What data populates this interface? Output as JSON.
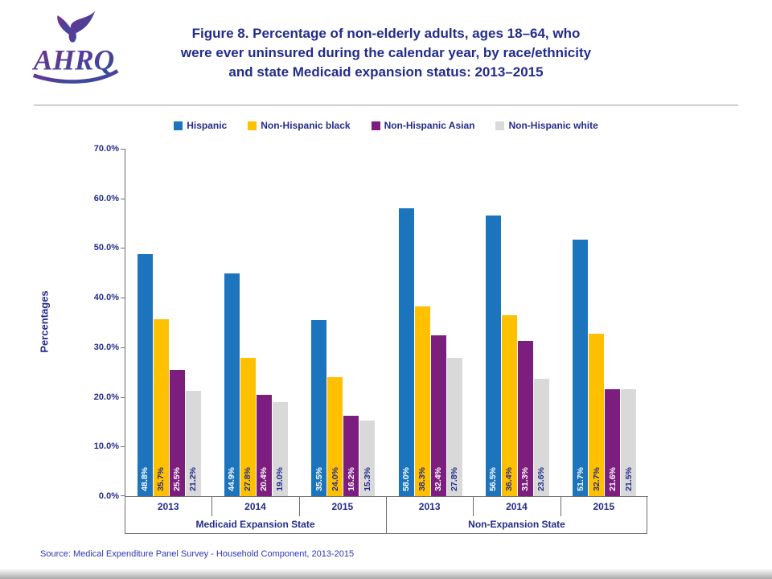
{
  "colors": {
    "navy": "#232C8B",
    "source_blue": "#2F35B5",
    "axis_gray": "#6E6E6E",
    "hispanic_blue": "#1C75BC",
    "black_gold": "#FFC000",
    "asian_purple": "#7C1E7E",
    "white_gray": "#D9D9D9"
  },
  "header": {
    "logo_name": "AHRQ",
    "title_lines": [
      "Figure 8. Percentage of non-elderly adults, ages 18–64, who",
      "were ever uninsured during the calendar year, by race/ethnicity",
      "and state Medicaid expansion status: 2013–2015"
    ]
  },
  "chart_data": {
    "type": "bar",
    "title": "Figure 8. Percentage of non-elderly adults, ages 18–64, who were ever uninsured during the calendar year, by race/ethnicity and state Medicaid expansion status: 2013–2015",
    "ylabel": "Percentages",
    "ylim": [
      0,
      70
    ],
    "ytick_step": 10,
    "ytick_format": "percent_one_decimal",
    "grid": false,
    "legend_position": "top",
    "categories": [
      "2013",
      "2014",
      "2015",
      "2013",
      "2014",
      "2015"
    ],
    "sections": [
      {
        "label": "Medicaid Expansion State",
        "span": 3
      },
      {
        "label": "Non-Expansion State",
        "span": 3
      }
    ],
    "series": [
      {
        "name": "Hispanic",
        "color": "#1C75BC",
        "label_color": "#FFFFFF",
        "values": [
          48.8,
          44.9,
          35.5,
          58.0,
          56.5,
          51.7
        ]
      },
      {
        "name": "Non-Hispanic black",
        "color": "#FFC000",
        "label_color": "#232C8B",
        "values": [
          35.7,
          27.8,
          24.0,
          38.3,
          36.4,
          32.7
        ]
      },
      {
        "name": "Non-Hispanic Asian",
        "color": "#7C1E7E",
        "label_color": "#FFFFFF",
        "values": [
          25.5,
          20.4,
          16.2,
          32.4,
          31.3,
          21.6
        ]
      },
      {
        "name": "Non-Hispanic white",
        "color": "#D9D9D9",
        "label_color": "#232C8B",
        "values": [
          21.2,
          19.0,
          15.3,
          27.8,
          23.6,
          21.5
        ]
      }
    ]
  },
  "footer": {
    "source": "Source:  Medical Expenditure Panel Survey  - Household Component, 2013-2015"
  }
}
